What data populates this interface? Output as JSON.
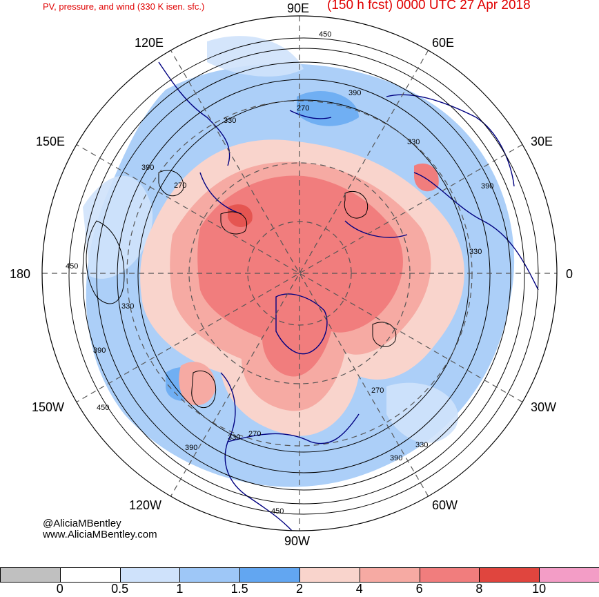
{
  "header": {
    "left_title": "PV, pressure, and wind (330 K isen. sfc.)",
    "right_title": "(150 h fcst) 0000 UTC 27 Apr 2018"
  },
  "longitude_labels": {
    "e90": "90E",
    "e60": "60E",
    "e30": "30E",
    "zero": "0",
    "w30": "30W",
    "w60": "60W",
    "w90": "90W",
    "w120": "120W",
    "w150": "150W",
    "deg180": "180",
    "e150": "150E",
    "e120": "120E"
  },
  "contour_labels": [
    "450",
    "390",
    "270",
    "330",
    "330",
    "390",
    "390",
    "270",
    "330",
    "450",
    "330",
    "390",
    "450",
    "330",
    "270",
    "330",
    "390",
    "270",
    "390",
    "330",
    "450"
  ],
  "credits": {
    "handle": "@AliciaMBentley",
    "site": "www.AliciaMBentley.com"
  },
  "colorbar": {
    "colors": [
      "#c0c0c0",
      "#ffffff",
      "#cfe2fb",
      "#9ec7f7",
      "#62a6f1",
      "#f9d4cc",
      "#f6aaa3",
      "#f17d7d",
      "#e0453e",
      "#f39dc6"
    ],
    "tick_labels": [
      "0",
      "0.5",
      "1",
      "1.5",
      "2",
      "4",
      "6",
      "8",
      "10"
    ]
  }
}
